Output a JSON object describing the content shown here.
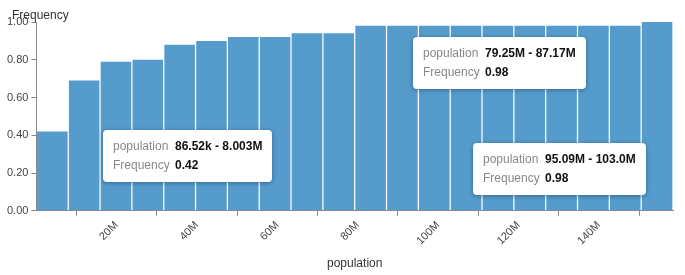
{
  "chart_data": {
    "type": "histogram",
    "y_label": "Frequency",
    "x_label": "population",
    "bins": [
      86520,
      8003370,
      15920220,
      23837070,
      31753920,
      39670770,
      47587620,
      55504470,
      63421320,
      71338170,
      79255020,
      87171870,
      95088720,
      103005570,
      110922420,
      118839270,
      126756120,
      134672970,
      142589820,
      150506670,
      158423520
    ],
    "values": [
      0.42,
      0.69,
      0.79,
      0.8,
      0.88,
      0.9,
      0.92,
      0.92,
      0.94,
      0.94,
      0.98,
      0.98,
      0.98,
      0.98,
      0.98,
      0.98,
      0.98,
      0.98,
      0.98,
      1.0
    ],
    "color": "#559ccd",
    "xlim": [
      86520,
      158423520
    ],
    "xticks": [
      {
        "value": 20000000,
        "label": "20M"
      },
      {
        "value": 40000000,
        "label": "40M"
      },
      {
        "value": 60000000,
        "label": "60M"
      },
      {
        "value": 80000000,
        "label": "80M"
      },
      {
        "value": 100000000,
        "label": "100M"
      },
      {
        "value": 120000000,
        "label": "120M"
      },
      {
        "value": 140000000,
        "label": "140M"
      }
    ],
    "ylim": [
      0,
      1
    ],
    "yticks": [
      {
        "value": 0,
        "label": "0.00"
      },
      {
        "value": 0.2,
        "label": "0.20"
      },
      {
        "value": 0.4,
        "label": "0.40"
      },
      {
        "value": 0.6,
        "label": "0.60"
      },
      {
        "value": 0.8,
        "label": "0.80"
      },
      {
        "value": 1,
        "label": "1.00"
      }
    ],
    "grid": false,
    "annotations": [
      {
        "rows": [
          {
            "label": "population",
            "value": "86.52k - 8.003M"
          },
          {
            "label": "Frequency",
            "value": "0.42"
          }
        ]
      },
      {
        "rows": [
          {
            "label": "population",
            "value": "79.25M - 87.17M"
          },
          {
            "label": "Frequency",
            "value": "0.98"
          }
        ]
      },
      {
        "rows": [
          {
            "label": "population",
            "value": "95.09M - 103.0M"
          },
          {
            "label": "Frequency",
            "value": "0.98"
          }
        ]
      }
    ]
  }
}
